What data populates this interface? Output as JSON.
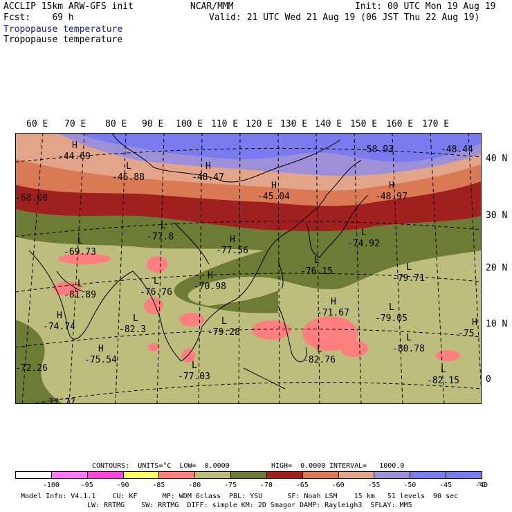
{
  "header": {
    "model": "ACCLIP 15km ARW-GFS init",
    "org": "NCAR/MMM",
    "init": "Init: 00 UTC Mon 19 Aug 19",
    "fcst": "Fcst:    69 h",
    "valid": "Valid: 21 UTC Wed 21 Aug 19 (06 JST Thu 22 Aug 19)",
    "field_title_1": "Tropopause temperature",
    "field_title_2": "Tropopause temperature"
  },
  "map": {
    "lon_labels": [
      "60 E",
      "70 E",
      "80 E",
      "90 E",
      "100 E",
      "110 E",
      "120 E",
      "130 E",
      "140 E",
      "150 E",
      "160 E",
      "170 E"
    ],
    "lat_labels": [
      "40 N",
      "30 N",
      "20 N",
      "10 N",
      "0"
    ],
    "extrema": [
      {
        "type": "H",
        "value": "-44.69"
      },
      {
        "type": "L",
        "value": "-46.88"
      },
      {
        "type": "H",
        "value": "-48.47"
      },
      {
        "type": "H",
        "value": "-45.04"
      },
      {
        "type": "",
        "value": "-58.93"
      },
      {
        "type": "",
        "value": "-48.44"
      },
      {
        "type": "H",
        "value": "-48.97"
      },
      {
        "type": "",
        "value": "-68.08"
      },
      {
        "type": "L",
        "value": "-77.8"
      },
      {
        "type": "H",
        "value": "-77.56"
      },
      {
        "type": "L",
        "value": "-69.73"
      },
      {
        "type": "L",
        "value": "-74.92"
      },
      {
        "type": "L",
        "value": "-76.15"
      },
      {
        "type": "L",
        "value": "-79.71"
      },
      {
        "type": "H",
        "value": "-70.98"
      },
      {
        "type": "L",
        "value": "-76.76"
      },
      {
        "type": "L",
        "value": "-81.89"
      },
      {
        "type": "H",
        "value": "-71.67"
      },
      {
        "type": "L",
        "value": "-79.05"
      },
      {
        "type": "H",
        "value": "-74.74"
      },
      {
        "type": "L",
        "value": "-82.3"
      },
      {
        "type": "L",
        "value": "-79.28"
      },
      {
        "type": "L",
        "value": "-80.78"
      },
      {
        "type": "H",
        "value": "-75"
      },
      {
        "type": "H",
        "value": "-75.54"
      },
      {
        "type": "",
        "value": "-72.26"
      },
      {
        "type": "L",
        "value": "-77.03"
      },
      {
        "type": "L",
        "value": "-82.76"
      },
      {
        "type": "L",
        "value": "-82.15"
      },
      {
        "type": "",
        "value": "-77.77"
      }
    ]
  },
  "contour_info": {
    "contours": "CONTOURS:  UNITS=°C  LOW=  0.0000",
    "high": "HIGH=  0.0000",
    "interval": "INTERVAL=   1000.0"
  },
  "legend": {
    "unit": "°C",
    "ticks": [
      "-100",
      "-95",
      "-90",
      "-85",
      "-80",
      "-75",
      "-70",
      "-65",
      "-60",
      "-55",
      "-50",
      "-45",
      "-40"
    ],
    "colors": [
      "#ffffff",
      "#ff77ff",
      "#ff44dd",
      "#ffff66",
      "#ff7f7f",
      "#bdbd7d",
      "#6e7b35",
      "#a02020",
      "#d97a55",
      "#e2a58a",
      "#9d90d9",
      "#7b7bf0",
      "#7b7bf0"
    ]
  },
  "footer": {
    "line1": "Model Info: V4.1.1    CU: KF      MP: WDM 6class  PBL: YSU      SF: Noah LSM    15 km   51 levels  90 sec",
    "line2": "LW: RRTMG    SW: RRTMG  DIFF: simple KM: 2D Smagor DAMP: Rayleigh3  SFLAY: MM5"
  }
}
